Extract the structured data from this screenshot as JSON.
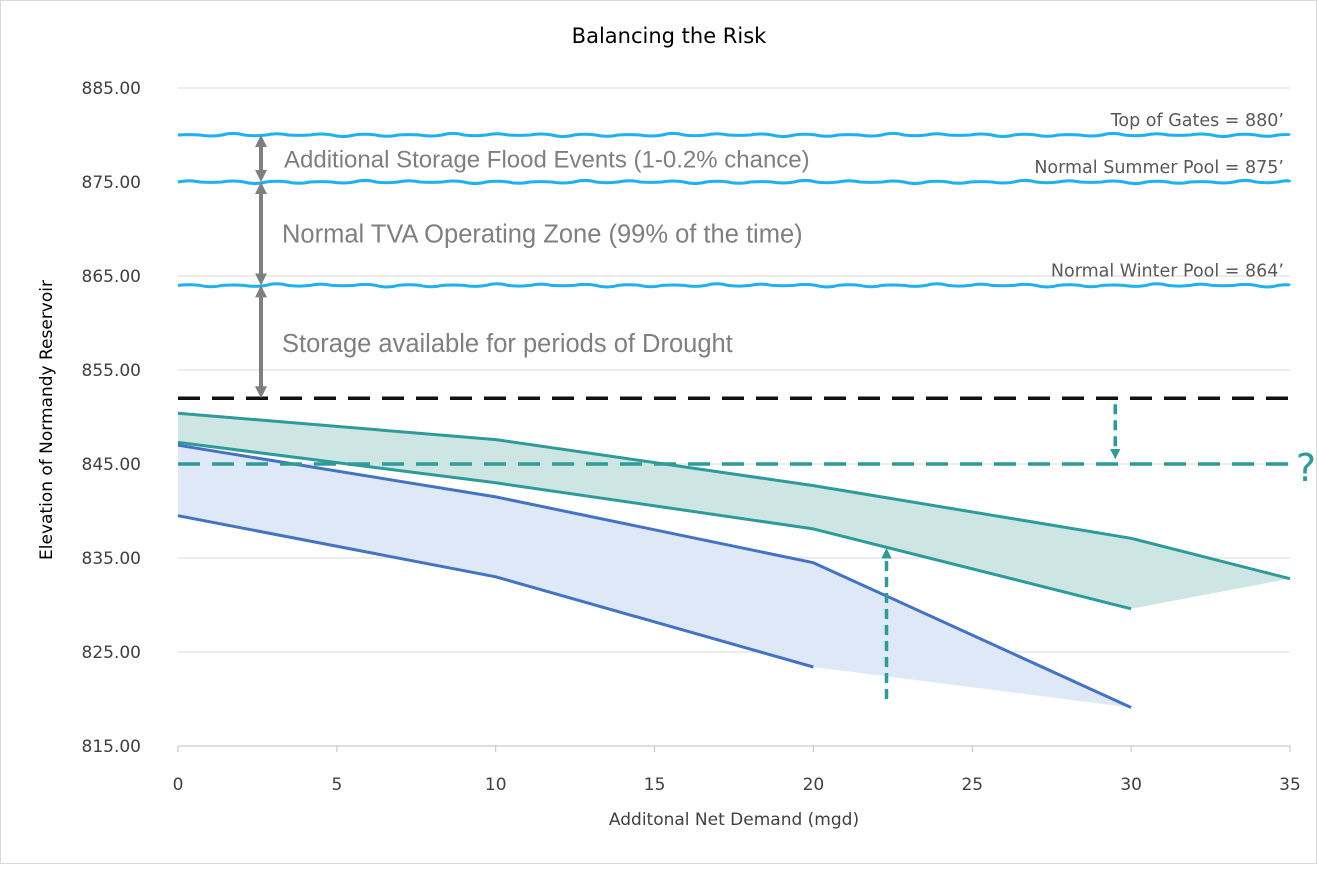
{
  "chart_data": {
    "type": "line",
    "title": "Balancing the Risk",
    "xlabel": "Additonal Net Demand (mgd)",
    "ylabel": "Elevation of Normandy Reservoir",
    "xlim": [
      0,
      35
    ],
    "ylim": [
      815,
      885
    ],
    "x_ticks": [
      "0",
      "5",
      "10",
      "15",
      "20",
      "25",
      "30",
      "35"
    ],
    "y_ticks": [
      "815.00",
      "825.00",
      "835.00",
      "845.00",
      "855.00",
      "865.00",
      "875.00",
      "885.00"
    ],
    "grid": "horizontal",
    "reference_lines": [
      {
        "label": "Top of Gates = 880’",
        "y": 880,
        "color": "#1fb0ef"
      },
      {
        "label": "Normal Summer Pool = 875’",
        "y": 875,
        "color": "#1fb0ef"
      },
      {
        "label": "Normal Winter Pool = 864’",
        "y": 864,
        "color": "#1fb0ef"
      },
      {
        "y": 852,
        "color": "#111111"
      },
      {
        "y": 845,
        "color": "#2e9a9a"
      }
    ],
    "bands": [
      {
        "color": "#2e9a9a",
        "fill": "#cde6e4",
        "upper": [
          {
            "x": 0,
            "y": 850.4
          },
          {
            "x": 10,
            "y": 847.6
          },
          {
            "x": 20,
            "y": 842.7
          },
          {
            "x": 30,
            "y": 837.1
          },
          {
            "x": 35,
            "y": 832.8
          }
        ],
        "lower": [
          {
            "x": 0,
            "y": 847.3
          },
          {
            "x": 10,
            "y": 843.0
          },
          {
            "x": 20,
            "y": 838.1
          },
          {
            "x": 30,
            "y": 829.6
          }
        ]
      },
      {
        "color": "#4472c4",
        "fill": "#dee8f6",
        "upper": [
          {
            "x": 0,
            "y": 847.0
          },
          {
            "x": 10,
            "y": 841.5
          },
          {
            "x": 20,
            "y": 834.5
          },
          {
            "x": 30,
            "y": 819.1
          }
        ],
        "lower": [
          {
            "x": 0,
            "y": 839.5
          },
          {
            "x": 10,
            "y": 833.0
          },
          {
            "x": 20,
            "y": 823.4
          }
        ]
      }
    ],
    "annotations": [
      {
        "text": "Additional Storage Flood Events (1-0.2% chance)",
        "arrow_from": 880,
        "arrow_to": 875
      },
      {
        "text": "Normal TVA Operating Zone (99% of the time)",
        "arrow_from": 875,
        "arrow_to": 864
      },
      {
        "text": "Storage available for periods of Drought",
        "arrow_from": 864,
        "arrow_to": 852
      }
    ],
    "markers": [
      {
        "text": "?",
        "color": "#2e9a9a"
      }
    ]
  }
}
